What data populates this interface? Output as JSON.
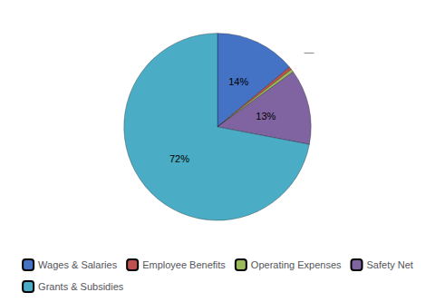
{
  "chart_data": {
    "type": "pie",
    "categories": [
      "Wages & Salaries",
      "Employee Benefits",
      "Operating Expenses",
      "Safety Net",
      "Grants & Subsidies"
    ],
    "values": [
      14,
      0.5,
      0.5,
      13,
      72
    ],
    "value_labels": [
      "14%",
      null,
      null,
      "13%",
      "72%"
    ],
    "colors": [
      "#4472c4",
      "#c0504d",
      "#9bbb59",
      "#8064a2",
      "#4bacc6"
    ],
    "data_labels": true,
    "legend": "bottom",
    "annotation": "—"
  }
}
